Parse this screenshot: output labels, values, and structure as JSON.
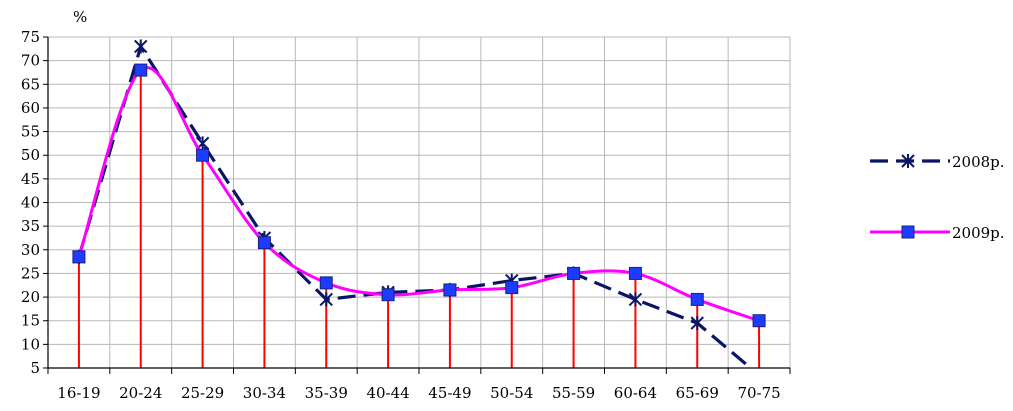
{
  "chart_data": {
    "type": "line",
    "ylabel": "%",
    "categories": [
      "16-19",
      "20-24",
      "25-29",
      "30-34",
      "35-39",
      "40-44",
      "45-49",
      "50-54",
      "55-59",
      "60-64",
      "65-69",
      "70-75"
    ],
    "ylim": [
      5,
      75
    ],
    "yticks": [
      5,
      10,
      15,
      20,
      25,
      30,
      35,
      40,
      45,
      50,
      55,
      60,
      65,
      70,
      75
    ],
    "grid": true,
    "legend_position": "right",
    "series": [
      {
        "name": "2008р.",
        "values": [
          28.5,
          73,
          52.5,
          32.5,
          19.5,
          21,
          21.5,
          23.5,
          25,
          19.5,
          14.5,
          3.5
        ],
        "color": "#0b1566",
        "style": "dashed",
        "marker": "x-star"
      },
      {
        "name": "2009р.",
        "values": [
          28.5,
          68,
          50,
          31.5,
          23,
          20.5,
          21.5,
          22,
          25,
          25,
          19.5,
          15
        ],
        "color": "#ff00ff",
        "style": "solid-smooth",
        "marker": "square",
        "marker_color": "#1c3cff"
      }
    ],
    "drop_line_color": "#ff0000"
  }
}
